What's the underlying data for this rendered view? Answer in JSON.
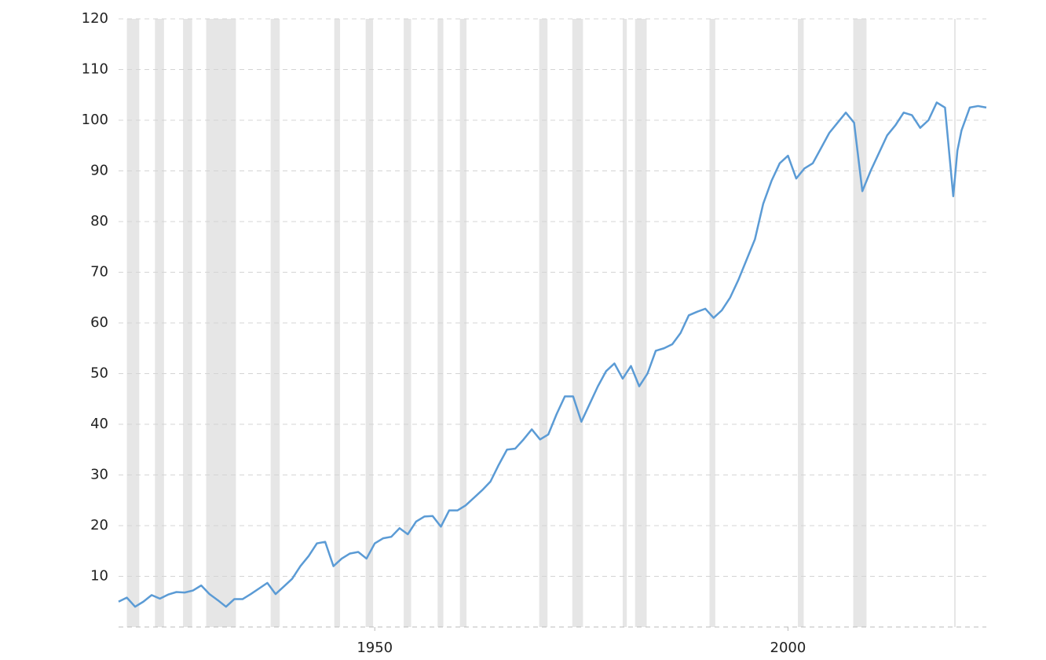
{
  "chart_data": {
    "type": "line",
    "x": [
      1919,
      1920,
      1921,
      1922,
      1923,
      1924,
      1925,
      1926,
      1927,
      1928,
      1929,
      1930,
      1931,
      1932,
      1933,
      1934,
      1935,
      1936,
      1937,
      1938,
      1939,
      1940,
      1941,
      1942,
      1943,
      1944,
      1945,
      1946,
      1947,
      1948,
      1949,
      1950,
      1951,
      1952,
      1953,
      1954,
      1955,
      1956,
      1957,
      1958,
      1959,
      1960,
      1961,
      1962,
      1963,
      1964,
      1965,
      1966,
      1967,
      1968,
      1969,
      1970,
      1971,
      1972,
      1973,
      1974,
      1975,
      1976,
      1977,
      1978,
      1979,
      1980,
      1981,
      1982,
      1983,
      1984,
      1985,
      1986,
      1987,
      1988,
      1989,
      1990,
      1991,
      1992,
      1993,
      1994,
      1995,
      1996,
      1997,
      1998,
      1999,
      2000,
      2001,
      2002,
      2003,
      2004,
      2005,
      2006,
      2007,
      2008,
      2009,
      2010,
      2011,
      2012,
      2013,
      2014,
      2015,
      2016,
      2017,
      2018,
      2019,
      2020,
      2020.5,
      2021,
      2022,
      2023,
      2024
    ],
    "series": [
      {
        "color": "#5b9bd5",
        "values": [
          5.0,
          5.8,
          4.0,
          5.0,
          6.3,
          5.6,
          6.4,
          6.9,
          6.8,
          7.2,
          8.2,
          6.5,
          5.3,
          4.0,
          5.5,
          5.5,
          6.5,
          7.6,
          8.7,
          6.5,
          8.0,
          9.5,
          12.0,
          14.0,
          16.5,
          16.8,
          12.0,
          13.5,
          14.5,
          14.8,
          13.5,
          16.5,
          17.5,
          17.8,
          19.5,
          18.3,
          20.8,
          21.8,
          21.9,
          19.8,
          23.0,
          23.0,
          24.0,
          25.5,
          27.0,
          28.7,
          32.0,
          35.0,
          35.2,
          37.0,
          39.0,
          37.0,
          38.0,
          42.0,
          45.5,
          45.5,
          40.5,
          44.0,
          47.5,
          50.5,
          52.0,
          49.0,
          51.5,
          47.5,
          50.0,
          54.5,
          55.0,
          55.8,
          58.0,
          61.5,
          62.2,
          62.8,
          61.0,
          62.5,
          65.0,
          68.5,
          72.5,
          76.5,
          83.5,
          88.0,
          91.5,
          93.0,
          88.5,
          90.5,
          91.5,
          94.5,
          97.5,
          99.5,
          101.5,
          99.5,
          86.0,
          90.0,
          93.5,
          97.0,
          99.0,
          101.5,
          101.0,
          98.5,
          100.0,
          103.5,
          102.5,
          85.0,
          94.0,
          98.0,
          102.5,
          102.8,
          102.5
        ]
      }
    ],
    "recessions": [
      [
        1920.0,
        1921.5
      ],
      [
        1923.4,
        1924.5
      ],
      [
        1926.8,
        1927.9
      ],
      [
        1929.6,
        1933.2
      ],
      [
        1937.4,
        1938.5
      ],
      [
        1945.1,
        1945.8
      ],
      [
        1948.9,
        1949.8
      ],
      [
        1953.5,
        1954.4
      ],
      [
        1957.6,
        1958.3
      ],
      [
        1960.3,
        1961.1
      ],
      [
        1969.9,
        1970.9
      ],
      [
        1973.9,
        1975.2
      ],
      [
        1980.0,
        1980.5
      ],
      [
        1981.5,
        1982.9
      ],
      [
        1990.5,
        1991.2
      ],
      [
        2001.2,
        2001.9
      ],
      [
        2007.9,
        2009.5
      ],
      [
        2020.1,
        2020.3
      ]
    ],
    "recession_color": "#e6e6e6",
    "xlim": [
      1919,
      2024
    ],
    "xticks": [
      1950,
      2000
    ],
    "ylim": [
      0,
      120
    ],
    "yticks": [
      10,
      20,
      30,
      40,
      50,
      60,
      70,
      80,
      90,
      100,
      110,
      120
    ],
    "grid": true
  }
}
